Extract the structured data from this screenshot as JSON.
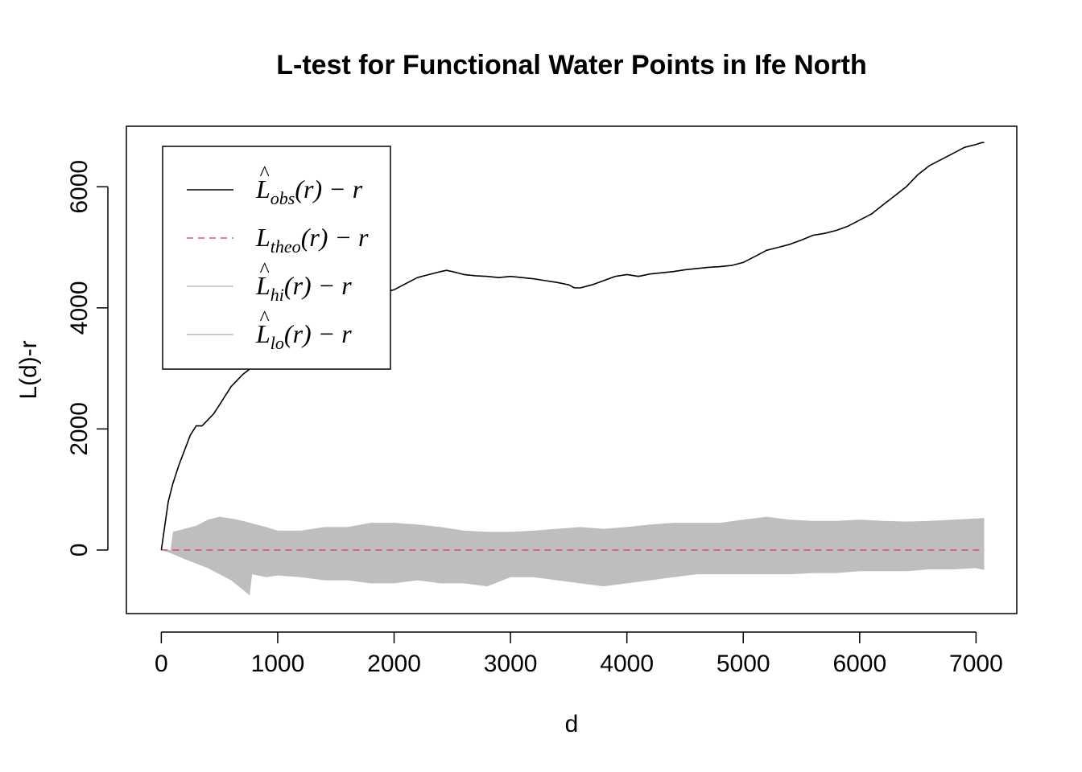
{
  "chart_data": {
    "type": "line",
    "title": "L-test for Functional Water Points in Ife North",
    "xlabel": "d",
    "ylabel": "L(d)-r",
    "xlim": [
      -300,
      7350
    ],
    "ylim": [
      -1050,
      7000
    ],
    "x_ticks": [
      0,
      1000,
      2000,
      3000,
      4000,
      5000,
      6000,
      7000
    ],
    "y_ticks": [
      0,
      2000,
      4000,
      6000
    ],
    "grid": false,
    "legend_position": "top-left",
    "legend": [
      {
        "id": "obs",
        "base": "L",
        "hat": true,
        "sub": "obs",
        "suffix": "(r) − r",
        "color": "#000000",
        "style": "solid"
      },
      {
        "id": "theo",
        "base": "L",
        "hat": false,
        "sub": "theo",
        "suffix": "(r) − r",
        "color": "#DF536B",
        "style": "dashed"
      },
      {
        "id": "hi",
        "base": "L",
        "hat": true,
        "sub": "hi",
        "suffix": "(r) − r",
        "color": "#BEBEBE",
        "style": "solid"
      },
      {
        "id": "lo",
        "base": "L",
        "hat": true,
        "sub": "lo",
        "suffix": "(r) − r",
        "color": "#BEBEBE",
        "style": "solid"
      }
    ],
    "series": [
      {
        "name": "obs",
        "color": "#000000",
        "x": [
          0,
          30,
          60,
          100,
          150,
          200,
          250,
          300,
          350,
          400,
          450,
          500,
          600,
          700,
          800,
          900,
          1000,
          1100,
          1200,
          1300,
          1400,
          1500,
          1600,
          1700,
          1800,
          1900,
          2000,
          2100,
          2200,
          2300,
          2400,
          2450,
          2500,
          2600,
          2700,
          2800,
          2900,
          3000,
          3100,
          3200,
          3300,
          3400,
          3500,
          3550,
          3600,
          3700,
          3800,
          3900,
          4000,
          4100,
          4200,
          4300,
          4400,
          4500,
          4600,
          4700,
          4800,
          4900,
          5000,
          5100,
          5200,
          5300,
          5400,
          5500,
          5600,
          5700,
          5800,
          5900,
          6000,
          6100,
          6200,
          6300,
          6400,
          6500,
          6600,
          6700,
          6800,
          6900,
          7000,
          7050,
          7070
        ],
        "y": [
          0,
          400,
          800,
          1100,
          1400,
          1650,
          1900,
          2050,
          2050,
          2150,
          2250,
          2400,
          2700,
          2900,
          3050,
          3150,
          3250,
          3450,
          3650,
          3750,
          3850,
          3900,
          4000,
          4100,
          4150,
          4250,
          4300,
          4400,
          4500,
          4550,
          4600,
          4620,
          4600,
          4550,
          4530,
          4520,
          4500,
          4520,
          4500,
          4480,
          4450,
          4420,
          4380,
          4330,
          4330,
          4380,
          4450,
          4520,
          4550,
          4520,
          4560,
          4580,
          4600,
          4630,
          4650,
          4670,
          4680,
          4700,
          4750,
          4850,
          4950,
          5000,
          5050,
          5120,
          5200,
          5230,
          5280,
          5350,
          5450,
          5550,
          5700,
          5850,
          6000,
          6200,
          6350,
          6450,
          6550,
          6650,
          6700,
          6730,
          6730
        ]
      },
      {
        "name": "theo",
        "color": "#DF536B",
        "x": [
          0,
          7070
        ],
        "y": [
          0,
          0
        ]
      },
      {
        "name": "hi",
        "color": "#BEBEBE",
        "x": [
          0,
          80,
          100,
          200,
          300,
          400,
          500,
          600,
          700,
          800,
          900,
          1000,
          1200,
          1400,
          1600,
          1800,
          2000,
          2200,
          2400,
          2600,
          2800,
          3000,
          3200,
          3400,
          3600,
          3800,
          4000,
          4200,
          4400,
          4600,
          4800,
          5000,
          5200,
          5400,
          5600,
          5800,
          6000,
          6200,
          6400,
          6600,
          6800,
          7000,
          7070
        ],
        "y": [
          0,
          0,
          300,
          350,
          400,
          500,
          550,
          520,
          480,
          430,
          380,
          320,
          320,
          380,
          380,
          450,
          450,
          420,
          380,
          320,
          300,
          300,
          320,
          350,
          380,
          350,
          380,
          420,
          450,
          450,
          450,
          500,
          550,
          500,
          480,
          480,
          500,
          480,
          470,
          480,
          500,
          520,
          530
        ]
      },
      {
        "name": "lo",
        "color": "#BEBEBE",
        "x": [
          0,
          80,
          200,
          400,
          600,
          760,
          780,
          900,
          1000,
          1200,
          1400,
          1600,
          1800,
          2000,
          2200,
          2400,
          2600,
          2800,
          3000,
          3200,
          3400,
          3600,
          3800,
          4000,
          4200,
          4400,
          4600,
          4800,
          5000,
          5200,
          5400,
          5600,
          5800,
          6000,
          6200,
          6400,
          6600,
          6800,
          7000,
          7070
        ],
        "y": [
          0,
          -50,
          -150,
          -300,
          -500,
          -750,
          -400,
          -450,
          -420,
          -450,
          -500,
          -500,
          -550,
          -550,
          -500,
          -550,
          -550,
          -600,
          -450,
          -450,
          -500,
          -550,
          -600,
          -550,
          -500,
          -450,
          -400,
          -400,
          -400,
          -400,
          -400,
          -380,
          -380,
          -350,
          -350,
          -350,
          -320,
          -320,
          -300,
          -330
        ]
      }
    ]
  }
}
